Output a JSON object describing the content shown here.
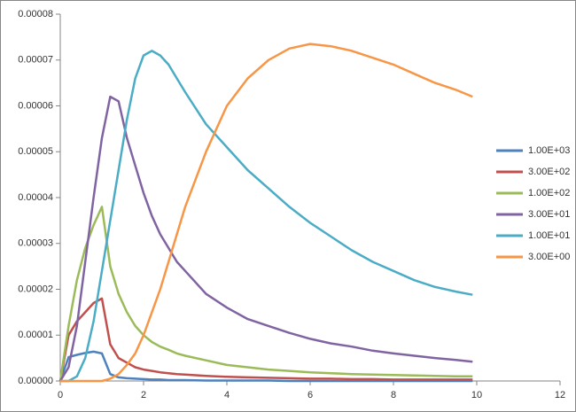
{
  "chart_data": {
    "type": "line",
    "x": [
      0,
      0.2,
      0.4,
      0.6,
      0.8,
      1.0,
      1.2,
      1.4,
      1.6,
      1.8,
      2.0,
      2.2,
      2.4,
      2.6,
      2.8,
      3.0,
      3.5,
      4,
      4.5,
      5,
      5.5,
      6,
      6.5,
      7,
      7.5,
      8,
      8.5,
      9,
      9.5,
      9.9
    ],
    "series": [
      {
        "name": "1.00E+03",
        "color": "#4f81bd",
        "values": [
          0,
          5.2e-06,
          5.7e-06,
          6.1e-06,
          6.4e-06,
          6e-06,
          1.5e-06,
          8e-07,
          6e-07,
          5e-07,
          4e-07,
          3e-07,
          3e-07,
          2e-07,
          2e-07,
          2e-07,
          1e-07,
          1e-07,
          1e-07,
          1e-07,
          0,
          0,
          0,
          0,
          0,
          0,
          0,
          0,
          0,
          0
        ]
      },
      {
        "name": "3.00E+02",
        "color": "#c0504d",
        "values": [
          0,
          1e-05,
          1.3e-05,
          1.5e-05,
          1.7e-05,
          1.8e-05,
          8e-06,
          5e-06,
          4e-06,
          3e-06,
          2.5e-06,
          2.2e-06,
          1.9e-06,
          1.7e-06,
          1.5e-06,
          1.4e-06,
          1.1e-06,
          9e-07,
          8e-07,
          7e-07,
          6e-07,
          5e-07,
          5e-07,
          4e-07,
          4e-07,
          3e-07,
          3e-07,
          3e-07,
          3e-07,
          3e-07
        ]
      },
      {
        "name": "1.00E+02",
        "color": "#9bbb59",
        "values": [
          0,
          1.2e-05,
          2.2e-05,
          2.9e-05,
          3.4e-05,
          3.8e-05,
          2.5e-05,
          1.9e-05,
          1.5e-05,
          1.2e-05,
          1e-05,
          8.5e-06,
          7.5e-06,
          6.8e-06,
          6e-06,
          5.5e-06,
          4.5e-06,
          3.5e-06,
          3e-06,
          2.5e-06,
          2.2e-06,
          1.9e-06,
          1.7e-06,
          1.5e-06,
          1.4e-06,
          1.3e-06,
          1.2e-06,
          1.1e-06,
          1e-06,
          1e-06
        ]
      },
      {
        "name": "3.00E+01",
        "color": "#8064a2",
        "values": [
          0,
          3e-06,
          1.2e-05,
          2.6e-05,
          4e-05,
          5.3e-05,
          6.2e-05,
          6.1e-05,
          5.3e-05,
          4.7e-05,
          4.1e-05,
          3.6e-05,
          3.2e-05,
          2.9e-05,
          2.6e-05,
          2.4e-05,
          1.9e-05,
          1.6e-05,
          1.35e-05,
          1.2e-05,
          1.05e-05,
          9.2e-06,
          8.2e-06,
          7.5e-06,
          6.6e-06,
          6e-06,
          5.5e-06,
          5e-06,
          4.6e-06,
          4.2e-06
        ]
      },
      {
        "name": "1.00E+01",
        "color": "#4bacc6",
        "values": [
          0,
          0,
          1e-06,
          5e-06,
          1.3e-05,
          2.4e-05,
          3.5e-05,
          4.6e-05,
          5.7e-05,
          6.6e-05,
          7.1e-05,
          7.2e-05,
          7.1e-05,
          6.9e-05,
          6.6e-05,
          6.3e-05,
          5.6e-05,
          5.1e-05,
          4.6e-05,
          4.2e-05,
          3.8e-05,
          3.45e-05,
          3.15e-05,
          2.85e-05,
          2.6e-05,
          2.4e-05,
          2.2e-05,
          2.05e-05,
          1.95e-05,
          1.88e-05
        ]
      },
      {
        "name": "3.00E+00",
        "color": "#f79646",
        "values": [
          0,
          0,
          0,
          0,
          0,
          0,
          5e-07,
          1.5e-06,
          3.5e-06,
          6e-06,
          1e-05,
          1.5e-05,
          2e-05,
          2.6e-05,
          3.2e-05,
          3.8e-05,
          5e-05,
          6e-05,
          6.6e-05,
          7e-05,
          7.25e-05,
          7.35e-05,
          7.3e-05,
          7.2e-05,
          7.05e-05,
          6.9e-05,
          6.7e-05,
          6.5e-05,
          6.35e-05,
          6.2e-05
        ]
      }
    ],
    "xlim": [
      0,
      12
    ],
    "xticks": [
      0,
      2,
      4,
      6,
      8,
      10,
      12
    ],
    "ylim": [
      0,
      8e-05
    ],
    "yticks": [
      {
        "value": 0,
        "label": "0.00000"
      },
      {
        "value": 1e-05,
        "label": "0.00001"
      },
      {
        "value": 2e-05,
        "label": "0.00002"
      },
      {
        "value": 3e-05,
        "label": "0.00003"
      },
      {
        "value": 4e-05,
        "label": "0.00004"
      },
      {
        "value": 5e-05,
        "label": "0.00005"
      },
      {
        "value": 6e-05,
        "label": "0.00006"
      },
      {
        "value": 7e-05,
        "label": "0.00007"
      },
      {
        "value": 8e-05,
        "label": "0.00008"
      }
    ],
    "legend": "right"
  }
}
